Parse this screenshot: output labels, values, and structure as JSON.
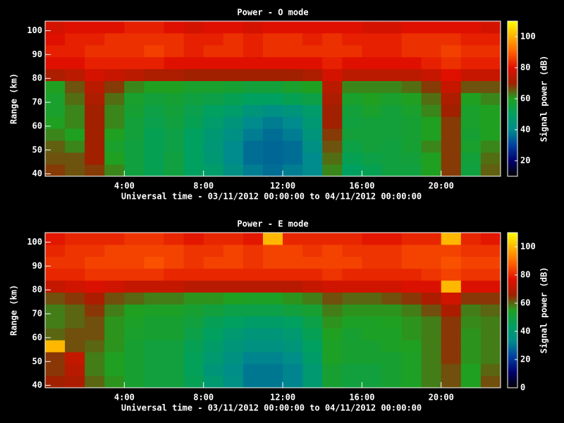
{
  "chart_data": [
    {
      "type": "heatmap",
      "title": "Power - O mode",
      "xlabel": "Universal time - 03/11/2012 00:00:00 to 04/11/2012 00:00:00",
      "ylabel": "Range (km)",
      "colorbar_label": "Signal power (dB)",
      "x": [
        0,
        1,
        2,
        3,
        4,
        5,
        6,
        7,
        8,
        9,
        10,
        11,
        12,
        13,
        14,
        15,
        16,
        17,
        18,
        19,
        20,
        21,
        22,
        23
      ],
      "y": [
        39,
        44,
        49,
        54,
        59,
        64,
        69,
        74,
        79,
        84,
        89,
        94,
        99,
        104
      ],
      "values": [
        [
          68,
          66,
          68,
          62,
          55,
          52,
          55,
          50,
          48,
          42,
          38,
          36,
          38,
          40,
          62,
          50,
          52,
          55,
          55,
          60,
          68,
          55,
          65
        ],
        [
          66,
          66,
          70,
          60,
          55,
          52,
          55,
          50,
          46,
          40,
          36,
          35,
          36,
          40,
          64,
          52,
          54,
          55,
          56,
          60,
          68,
          56,
          64
        ],
        [
          65,
          62,
          70,
          58,
          55,
          52,
          54,
          50,
          45,
          40,
          36,
          35,
          36,
          42,
          66,
          54,
          56,
          55,
          57,
          62,
          68,
          58,
          62
        ],
        [
          62,
          60,
          70,
          60,
          56,
          52,
          54,
          50,
          46,
          42,
          38,
          36,
          38,
          44,
          68,
          56,
          56,
          56,
          57,
          60,
          68,
          57,
          60
        ],
        [
          60,
          62,
          70,
          62,
          56,
          53,
          55,
          52,
          48,
          44,
          40,
          38,
          40,
          46,
          70,
          55,
          56,
          56,
          57,
          60,
          68,
          58,
          60
        ],
        [
          58,
          62,
          70,
          62,
          57,
          54,
          56,
          53,
          50,
          48,
          44,
          42,
          44,
          48,
          70,
          56,
          58,
          56,
          58,
          62,
          70,
          58,
          60
        ],
        [
          58,
          64,
          72,
          64,
          58,
          56,
          57,
          55,
          54,
          52,
          50,
          50,
          52,
          54,
          72,
          58,
          60,
          58,
          60,
          64,
          72,
          60,
          62
        ],
        [
          60,
          66,
          74,
          68,
          62,
          60,
          60,
          58,
          58,
          57,
          56,
          56,
          58,
          60,
          74,
          62,
          62,
          62,
          64,
          68,
          76,
          66,
          66
        ],
        [
          72,
          74,
          78,
          76,
          74,
          72,
          72,
          70,
          70,
          70,
          70,
          70,
          70,
          72,
          78,
          74,
          74,
          74,
          74,
          76,
          80,
          76,
          76
        ],
        [
          80,
          80,
          82,
          82,
          82,
          82,
          80,
          80,
          80,
          80,
          80,
          80,
          80,
          80,
          82,
          80,
          80,
          80,
          80,
          82,
          84,
          82,
          82
        ],
        [
          82,
          82,
          84,
          84,
          84,
          86,
          84,
          82,
          84,
          84,
          82,
          84,
          84,
          84,
          84,
          84,
          82,
          82,
          84,
          84,
          86,
          84,
          84
        ],
        [
          80,
          82,
          82,
          84,
          84,
          84,
          84,
          82,
          82,
          84,
          82,
          84,
          84,
          82,
          84,
          82,
          82,
          82,
          84,
          84,
          84,
          82,
          82
        ],
        [
          78,
          80,
          80,
          80,
          82,
          82,
          80,
          78,
          80,
          80,
          78,
          80,
          80,
          80,
          80,
          80,
          78,
          78,
          80,
          80,
          80,
          80,
          78
        ]
      ],
      "xlim": [
        0,
        23
      ],
      "ylim": [
        39,
        104
      ],
      "xticks": [
        {
          "value": 4,
          "label": "4:00"
        },
        {
          "value": 8,
          "label": "8:00"
        },
        {
          "value": 12,
          "label": "12:00"
        },
        {
          "value": 16,
          "label": "16:00"
        },
        {
          "value": 20,
          "label": "20:00"
        }
      ],
      "yticks": [
        40,
        50,
        60,
        70,
        80,
        90,
        100
      ],
      "clim": [
        10,
        110
      ],
      "cticks": [
        20,
        40,
        60,
        80,
        100
      ],
      "colormap": [
        "#000000",
        "#00006e",
        "#0040a0",
        "#008c8c",
        "#00a060",
        "#20a020",
        "#a02000",
        "#e01000",
        "#ff6000",
        "#ffb000",
        "#ffff00"
      ]
    },
    {
      "type": "heatmap",
      "title": "Power - E mode",
      "xlabel": "Universal time - 03/11/2012 00:00:00 to 04/11/2012 00:00:00",
      "ylabel": "Range (km)",
      "colorbar_label": "Signal power (dB)",
      "x": [
        0,
        1,
        2,
        3,
        4,
        5,
        6,
        7,
        8,
        9,
        10,
        11,
        12,
        13,
        14,
        15,
        16,
        17,
        18,
        19,
        20,
        21,
        22,
        23
      ],
      "y": [
        39,
        44,
        49,
        54,
        59,
        64,
        69,
        74,
        79,
        84,
        89,
        94,
        99,
        104
      ],
      "values": [
        [
          66,
          68,
          60,
          56,
          52,
          50,
          50,
          46,
          40,
          35,
          30,
          30,
          32,
          40,
          52,
          50,
          50,
          52,
          54,
          58,
          62,
          55,
          62
        ],
        [
          64,
          70,
          58,
          55,
          52,
          50,
          50,
          45,
          38,
          34,
          30,
          30,
          32,
          40,
          52,
          50,
          50,
          52,
          54,
          58,
          62,
          55,
          60
        ],
        [
          64,
          72,
          58,
          55,
          52,
          50,
          50,
          45,
          40,
          36,
          32,
          32,
          34,
          42,
          54,
          52,
          52,
          52,
          54,
          58,
          64,
          56,
          58
        ],
        [
          100,
          62,
          60,
          56,
          52,
          50,
          50,
          46,
          42,
          38,
          36,
          36,
          38,
          44,
          54,
          52,
          52,
          54,
          55,
          58,
          64,
          56,
          58
        ],
        [
          60,
          62,
          62,
          56,
          53,
          52,
          52,
          48,
          44,
          40,
          38,
          38,
          40,
          46,
          55,
          52,
          54,
          54,
          56,
          58,
          64,
          56,
          58
        ],
        [
          58,
          60,
          62,
          56,
          54,
          52,
          52,
          50,
          46,
          44,
          42,
          42,
          44,
          48,
          56,
          54,
          54,
          55,
          56,
          58,
          64,
          57,
          58
        ],
        [
          58,
          60,
          64,
          58,
          55,
          54,
          54,
          52,
          50,
          48,
          48,
          48,
          50,
          52,
          58,
          56,
          56,
          56,
          58,
          62,
          68,
          58,
          60
        ],
        [
          62,
          64,
          68,
          62,
          60,
          58,
          58,
          56,
          56,
          55,
          54,
          54,
          56,
          58,
          62,
          60,
          60,
          62,
          64,
          68,
          74,
          64,
          64
        ],
        [
          72,
          74,
          76,
          74,
          72,
          72,
          72,
          70,
          70,
          70,
          70,
          70,
          70,
          72,
          74,
          74,
          74,
          74,
          76,
          76,
          100,
          76,
          76
        ],
        [
          80,
          80,
          82,
          82,
          82,
          82,
          80,
          80,
          80,
          80,
          80,
          80,
          80,
          80,
          82,
          80,
          80,
          80,
          80,
          82,
          84,
          82,
          82
        ],
        [
          82,
          82,
          84,
          84,
          84,
          86,
          84,
          82,
          84,
          84,
          82,
          84,
          84,
          84,
          84,
          84,
          82,
          82,
          84,
          84,
          86,
          84,
          84
        ],
        [
          80,
          82,
          82,
          84,
          84,
          84,
          84,
          82,
          82,
          84,
          82,
          84,
          84,
          82,
          84,
          82,
          82,
          82,
          84,
          84,
          84,
          82,
          82
        ],
        [
          78,
          80,
          80,
          80,
          82,
          82,
          80,
          78,
          80,
          80,
          78,
          100,
          80,
          80,
          80,
          80,
          78,
          78,
          80,
          80,
          100,
          80,
          78
        ]
      ],
      "xlim": [
        0,
        23
      ],
      "ylim": [
        39,
        104
      ],
      "xticks": [
        {
          "value": 4,
          "label": "4:00"
        },
        {
          "value": 8,
          "label": "8:00"
        },
        {
          "value": 12,
          "label": "12:00"
        },
        {
          "value": 16,
          "label": "16:00"
        },
        {
          "value": 20,
          "label": "20:00"
        }
      ],
      "yticks": [
        40,
        50,
        60,
        70,
        80,
        90,
        100
      ],
      "clim": [
        0,
        110
      ],
      "cticks": [
        0,
        20,
        40,
        60,
        80,
        100
      ],
      "colormap": [
        "#000000",
        "#00006e",
        "#0040a0",
        "#008c8c",
        "#00a060",
        "#20a020",
        "#a02000",
        "#e01000",
        "#ff6000",
        "#ffb000",
        "#ffff00"
      ]
    }
  ]
}
